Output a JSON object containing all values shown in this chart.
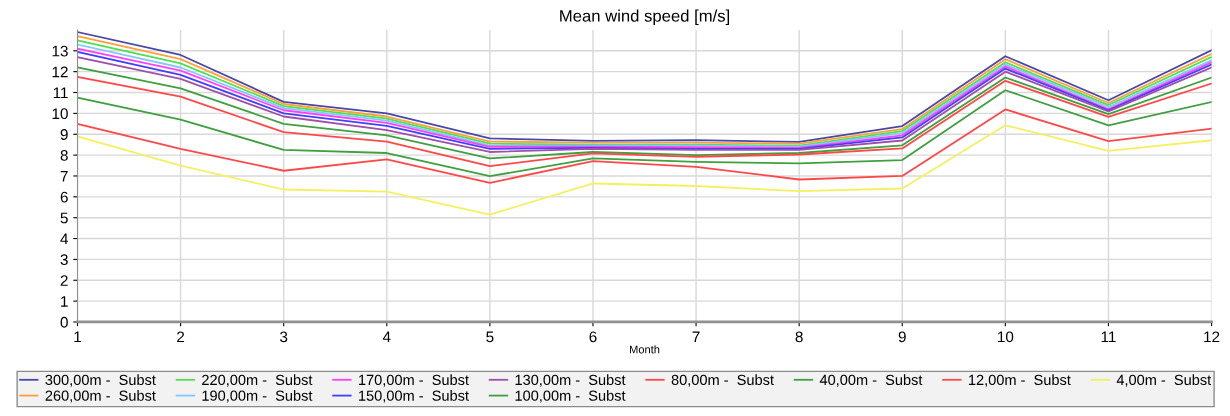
{
  "chart_data": {
    "type": "line",
    "title": "Mean wind speed [m/s]",
    "xlabel": "Month",
    "x": [
      1,
      2,
      3,
      4,
      5,
      6,
      7,
      8,
      9,
      10,
      11,
      12
    ],
    "xlim": [
      1,
      12
    ],
    "xticks": [
      1,
      2,
      3,
      4,
      5,
      6,
      7,
      8,
      9,
      10,
      11,
      12
    ],
    "ylim": [
      0,
      14
    ],
    "yticks": [
      0,
      1,
      2,
      3,
      4,
      5,
      6,
      7,
      8,
      9,
      10,
      11,
      12,
      13
    ],
    "grid": true,
    "legend": "bottom",
    "line_style": "solid",
    "marker": "none",
    "series": [
      {
        "name": "300,00m -  Subst",
        "color": "#4848a8",
        "values": [
          13.9,
          12.8,
          10.55,
          10.0,
          8.8,
          8.68,
          8.72,
          8.63,
          9.39,
          12.74,
          10.63,
          13.03
        ]
      },
      {
        "name": "260,00m -  Subst",
        "color": "#ffa040",
        "values": [
          13.7,
          12.6,
          10.45,
          9.85,
          8.65,
          8.6,
          8.6,
          8.55,
          9.25,
          12.6,
          10.5,
          12.85
        ]
      },
      {
        "name": "220,00m -  Subst",
        "color": "#50e050",
        "values": [
          13.5,
          12.4,
          10.35,
          9.75,
          8.55,
          8.5,
          8.5,
          8.45,
          9.15,
          12.45,
          10.4,
          12.7
        ]
      },
      {
        "name": "190,00m -  Subst",
        "color": "#80c8ff",
        "values": [
          13.3,
          12.2,
          10.25,
          9.65,
          8.45,
          8.45,
          8.45,
          8.4,
          9.05,
          12.35,
          10.3,
          12.55
        ]
      },
      {
        "name": "170,00m -  Subst",
        "color": "#ff40ff",
        "values": [
          13.1,
          12.05,
          10.15,
          9.55,
          8.4,
          8.4,
          8.38,
          8.35,
          8.95,
          12.25,
          10.2,
          12.45
        ]
      },
      {
        "name": "150,00m -  Subst",
        "color": "#4040ff",
        "values": [
          12.95,
          11.85,
          10.0,
          9.4,
          8.3,
          8.35,
          8.3,
          8.3,
          8.85,
          12.15,
          10.15,
          12.35
        ]
      },
      {
        "name": "130,00m -  Subst",
        "color": "#a050a8",
        "values": [
          12.7,
          11.65,
          9.85,
          9.2,
          8.15,
          8.3,
          8.25,
          8.25,
          8.7,
          12.0,
          10.1,
          12.2
        ]
      },
      {
        "name": "100,00m -  Subst",
        "color": "#40a040",
        "values": [
          12.2,
          11.2,
          9.5,
          8.95,
          7.84,
          8.15,
          8.0,
          8.1,
          8.47,
          11.72,
          9.96,
          11.72
        ]
      },
      {
        "name": "80,00m -  Subst",
        "color": "#ff4848",
        "values": [
          11.75,
          10.8,
          9.1,
          8.65,
          7.47,
          8.08,
          7.92,
          8.03,
          8.32,
          11.56,
          9.83,
          11.43
        ]
      },
      {
        "name": "40,00m -  Subst",
        "color": "#40a040",
        "values": [
          10.75,
          9.7,
          8.25,
          8.1,
          6.99,
          7.84,
          7.68,
          7.6,
          7.76,
          11.11,
          9.43,
          10.55
        ]
      },
      {
        "name": "12,00m -  Subst",
        "color": "#ff4848",
        "values": [
          9.5,
          8.3,
          7.25,
          7.8,
          6.67,
          7.71,
          7.44,
          6.83,
          7.0,
          10.19,
          8.67,
          9.27
        ]
      },
      {
        "name": "4,00m -  Subst",
        "color": "#f4f060",
        "values": [
          8.9,
          7.5,
          6.35,
          6.25,
          5.15,
          6.64,
          6.52,
          6.27,
          6.4,
          9.43,
          8.2,
          8.71
        ]
      }
    ]
  }
}
